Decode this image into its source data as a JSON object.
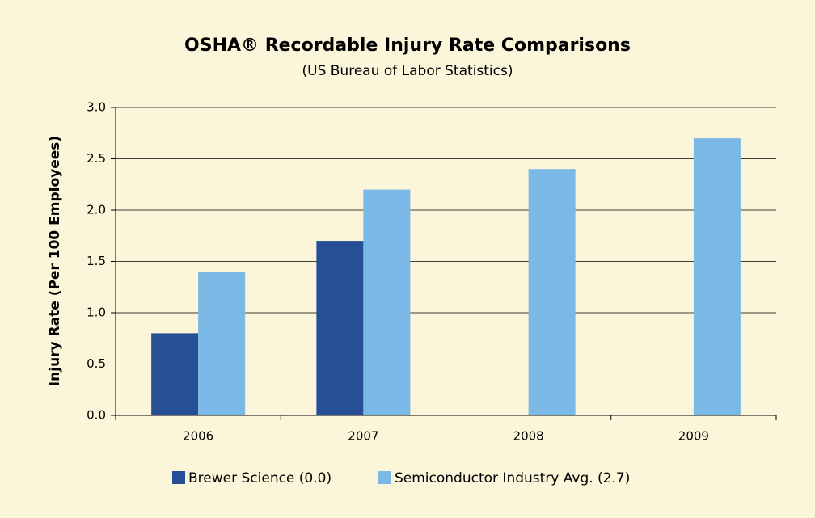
{
  "chart_data": {
    "type": "bar",
    "title": "OSHA® Recordable Injury Rate Comparisons",
    "subtitle": "(US Bureau of Labor Statistics)",
    "y_label": "Injury Rate (Per 100 Employees)",
    "categories": [
      "2006",
      "2007",
      "2008",
      "2009"
    ],
    "series": [
      {
        "name": "Brewer Science (0.0)",
        "color": "#264f96",
        "values": [
          0.8,
          1.7,
          0,
          0
        ]
      },
      {
        "name": "Semiconductor Industry Avg. (2.7)",
        "color": "#7ab8e6",
        "values": [
          1.4,
          2.2,
          2.4,
          2.7
        ]
      }
    ],
    "ylim": [
      0,
      3
    ],
    "yticks": [
      {
        "value": 0,
        "label": "0.0"
      },
      {
        "value": 0.5,
        "label": "0.5"
      },
      {
        "value": 1,
        "label": "1.0"
      },
      {
        "value": 1.5,
        "label": "1.5"
      },
      {
        "value": 2,
        "label": "2.0"
      },
      {
        "value": 2.5,
        "label": "2.5"
      },
      {
        "value": 3,
        "label": "3.0"
      }
    ],
    "grid": true,
    "legend": "bottom"
  }
}
